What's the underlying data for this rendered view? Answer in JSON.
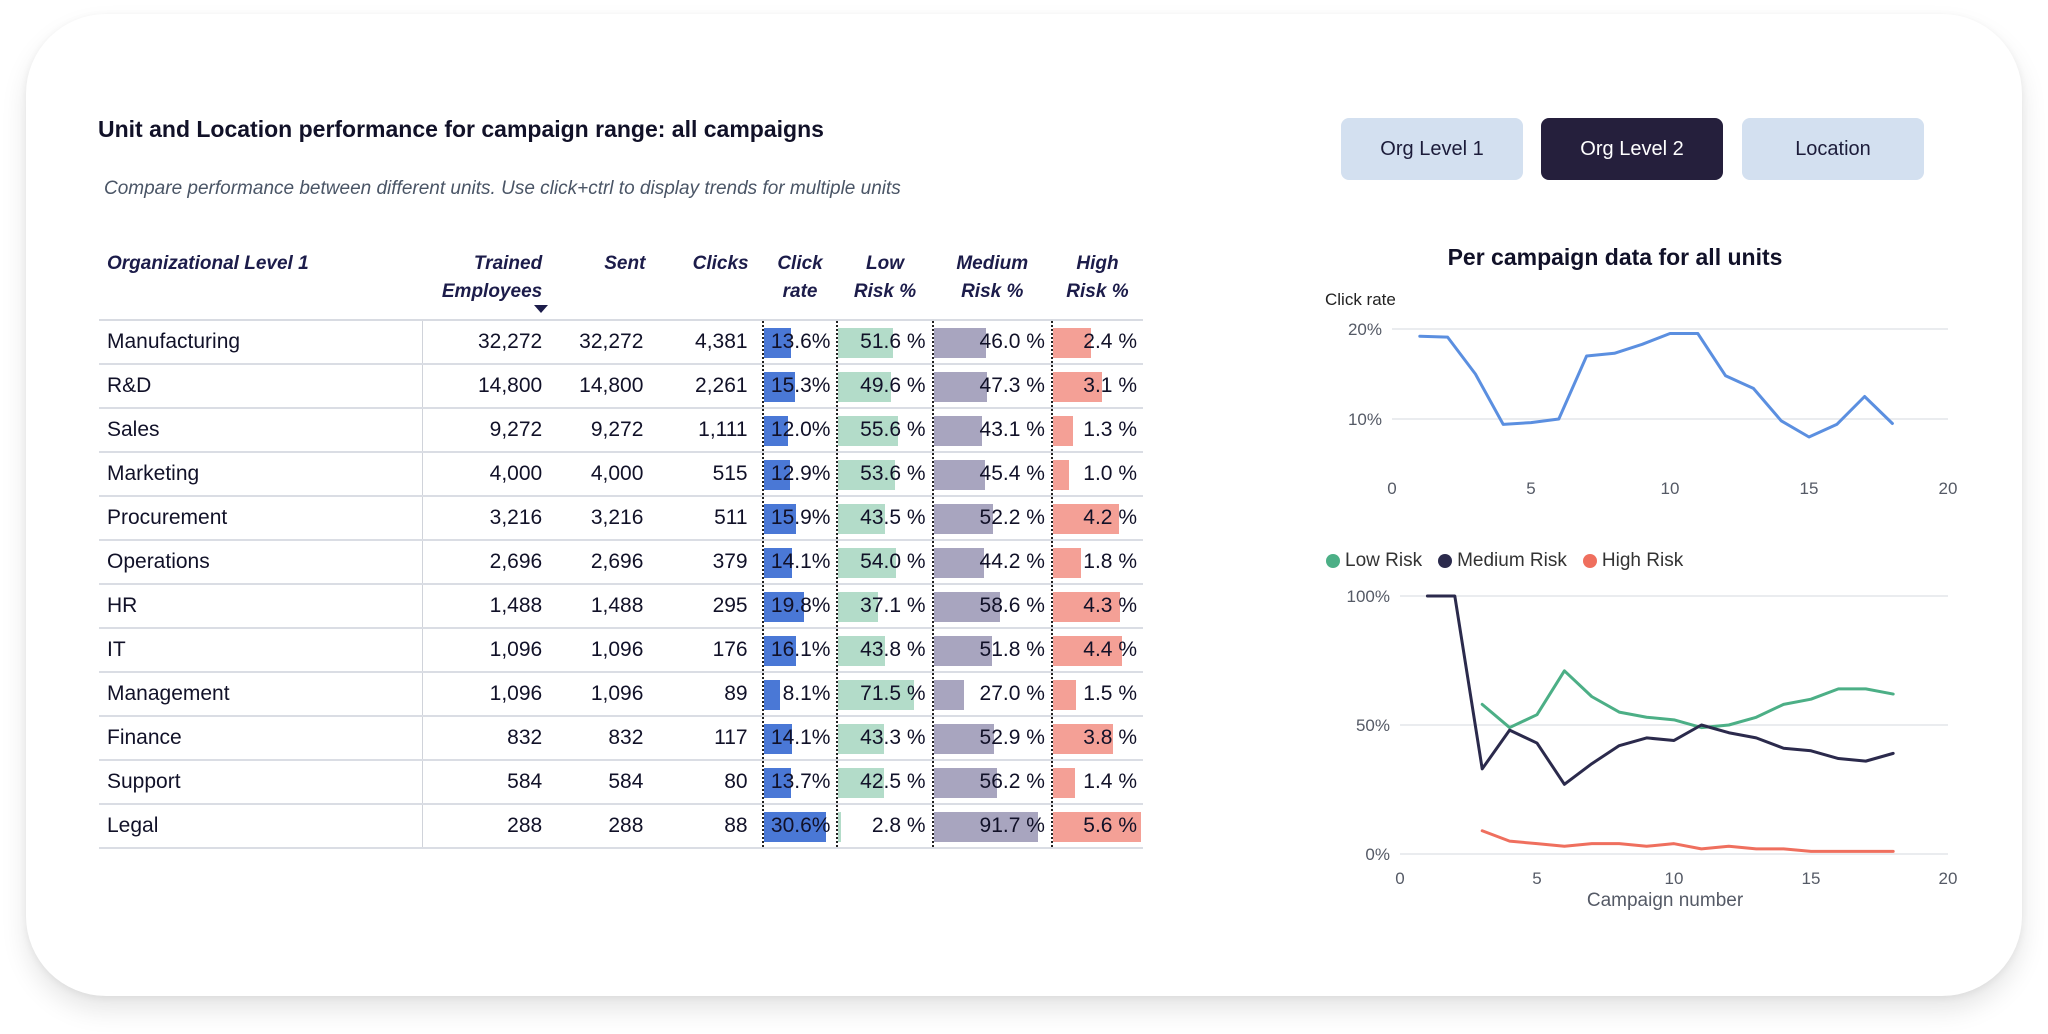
{
  "header": {
    "title": "Unit and Location performance for campaign range: all campaigns",
    "subtitle": "Compare performance between different units. Use click+ctrl to display trends for multiple units"
  },
  "toggles": [
    {
      "label": "Org Level 1",
      "active": false
    },
    {
      "label": "Org Level 2",
      "active": true
    },
    {
      "label": "Location",
      "active": false
    }
  ],
  "table": {
    "columns": {
      "name": "Organizational Level 1",
      "employees_l1": "Trained",
      "employees_l2": "Employees",
      "sent": "Sent",
      "clicks": "Clicks",
      "rate_l1": "Click",
      "rate_l2": "rate",
      "low_l1": "Low",
      "low_l2": "Risk %",
      "med_l1": "Medium",
      "med_l2": "Risk %",
      "high_l1": "High",
      "high_l2": "Risk %"
    },
    "rows": [
      {
        "name": "Manufacturing",
        "employees": "32,272",
        "sent": "32,272",
        "clicks": "4,381",
        "rate": "13.6%",
        "rate_v": 13.6,
        "low": "51.6 %",
        "low_v": 51.6,
        "med": "46.0 %",
        "med_v": 46.0,
        "high": "2.4 %",
        "high_v": 2.4
      },
      {
        "name": "R&D",
        "employees": "14,800",
        "sent": "14,800",
        "clicks": "2,261",
        "rate": "15.3%",
        "rate_v": 15.3,
        "low": "49.6 %",
        "low_v": 49.6,
        "med": "47.3 %",
        "med_v": 47.3,
        "high": "3.1 %",
        "high_v": 3.1
      },
      {
        "name": "Sales",
        "employees": "9,272",
        "sent": "9,272",
        "clicks": "1,111",
        "rate": "12.0%",
        "rate_v": 12.0,
        "low": "55.6 %",
        "low_v": 55.6,
        "med": "43.1 %",
        "med_v": 43.1,
        "high": "1.3 %",
        "high_v": 1.3
      },
      {
        "name": "Marketing",
        "employees": "4,000",
        "sent": "4,000",
        "clicks": "515",
        "rate": "12.9%",
        "rate_v": 12.9,
        "low": "53.6 %",
        "low_v": 53.6,
        "med": "45.4 %",
        "med_v": 45.4,
        "high": "1.0 %",
        "high_v": 1.0
      },
      {
        "name": "Procurement",
        "employees": "3,216",
        "sent": "3,216",
        "clicks": "511",
        "rate": "15.9%",
        "rate_v": 15.9,
        "low": "43.5 %",
        "low_v": 43.5,
        "med": "52.2 %",
        "med_v": 52.2,
        "high": "4.2 %",
        "high_v": 4.2
      },
      {
        "name": "Operations",
        "employees": "2,696",
        "sent": "2,696",
        "clicks": "379",
        "rate": "14.1%",
        "rate_v": 14.1,
        "low": "54.0 %",
        "low_v": 54.0,
        "med": "44.2 %",
        "med_v": 44.2,
        "high": "1.8 %",
        "high_v": 1.8
      },
      {
        "name": "HR",
        "employees": "1,488",
        "sent": "1,488",
        "clicks": "295",
        "rate": "19.8%",
        "rate_v": 19.8,
        "low": "37.1 %",
        "low_v": 37.1,
        "med": "58.6 %",
        "med_v": 58.6,
        "high": "4.3 %",
        "high_v": 4.3
      },
      {
        "name": "IT",
        "employees": "1,096",
        "sent": "1,096",
        "clicks": "176",
        "rate": "16.1%",
        "rate_v": 16.1,
        "low": "43.8 %",
        "low_v": 43.8,
        "med": "51.8 %",
        "med_v": 51.8,
        "high": "4.4 %",
        "high_v": 4.4
      },
      {
        "name": "Management",
        "employees": "1,096",
        "sent": "1,096",
        "clicks": "89",
        "rate": "8.1%",
        "rate_v": 8.1,
        "low": "71.5 %",
        "low_v": 71.5,
        "med": "27.0 %",
        "med_v": 27.0,
        "high": "1.5 %",
        "high_v": 1.5
      },
      {
        "name": "Finance",
        "employees": "832",
        "sent": "832",
        "clicks": "117",
        "rate": "14.1%",
        "rate_v": 14.1,
        "low": "43.3 %",
        "low_v": 43.3,
        "med": "52.9 %",
        "med_v": 52.9,
        "high": "3.8 %",
        "high_v": 3.8
      },
      {
        "name": "Support",
        "employees": "584",
        "sent": "584",
        "clicks": "80",
        "rate": "13.7%",
        "rate_v": 13.7,
        "low": "42.5 %",
        "low_v": 42.5,
        "med": "56.2 %",
        "med_v": 56.2,
        "high": "1.4 %",
        "high_v": 1.4
      },
      {
        "name": "Legal",
        "employees": "288",
        "sent": "288",
        "clicks": "88",
        "rate": "30.6%",
        "rate_v": 30.6,
        "low": "2.8 %",
        "low_v": 2.8,
        "med": "91.7 %",
        "med_v": 91.7,
        "high": "5.6 %",
        "high_v": 5.6
      }
    ]
  },
  "charts_panel": {
    "title": "Per campaign data for all units",
    "top_ylabel": "Click rate",
    "bottom_xlabel": "Campaign number"
  },
  "colors": {
    "click_rate": "#5b8fe0",
    "low_risk": "#4caf86",
    "medium_risk": "#2b2a4c",
    "high_risk": "#ef6f5e"
  },
  "chart_data": [
    {
      "type": "line",
      "ylabel": "Click rate",
      "xlim": [
        0,
        20
      ],
      "ylim": [
        5,
        21
      ],
      "xticks": [
        0,
        5,
        10,
        15,
        20
      ],
      "yticks": [
        10,
        20
      ],
      "ytick_labels": [
        "10%",
        "20%"
      ],
      "series": [
        {
          "x": [
            1,
            2,
            3,
            4,
            5,
            6,
            7,
            8,
            9,
            10,
            11,
            12,
            13,
            14,
            15,
            16,
            17,
            18
          ],
          "values": [
            19.2,
            19.1,
            15.0,
            9.4,
            9.6,
            10.0,
            17.0,
            17.3,
            18.3,
            19.5,
            19.5,
            14.8,
            13.4,
            9.8,
            8.0,
            9.4,
            12.5,
            9.5
          ]
        }
      ]
    },
    {
      "type": "line",
      "xlabel": "Campaign number",
      "xlim": [
        0,
        20
      ],
      "ylim": [
        0,
        100
      ],
      "xticks": [
        0,
        5,
        10,
        15,
        20
      ],
      "yticks": [
        0,
        50,
        100
      ],
      "ytick_labels": [
        "0%",
        "50%",
        "100%"
      ],
      "legend_position": "top-left",
      "series": [
        {
          "name": "Low Risk",
          "x": [
            3,
            4,
            5,
            6,
            7,
            8,
            9,
            10,
            11,
            12,
            13,
            14,
            15,
            16,
            17,
            18
          ],
          "values": [
            58,
            49,
            54,
            71,
            61,
            55,
            53,
            52,
            49,
            50,
            53,
            58,
            60,
            64,
            64,
            62
          ]
        },
        {
          "name": "Medium Risk",
          "x": [
            1,
            2,
            3,
            4,
            5,
            6,
            7,
            8,
            9,
            10,
            11,
            12,
            13,
            14,
            15,
            16,
            17,
            18
          ],
          "values": [
            100,
            100,
            33,
            48,
            43,
            27,
            35,
            42,
            45,
            44,
            50,
            47,
            45,
            41,
            40,
            37,
            36,
            39
          ]
        },
        {
          "name": "High Risk",
          "x": [
            3,
            4,
            5,
            6,
            7,
            8,
            9,
            10,
            11,
            12,
            13,
            14,
            15,
            16,
            17,
            18
          ],
          "values": [
            9,
            5,
            4,
            3,
            4,
            4,
            3,
            4,
            2,
            3,
            2,
            2,
            1,
            1,
            1,
            1
          ]
        }
      ]
    }
  ]
}
